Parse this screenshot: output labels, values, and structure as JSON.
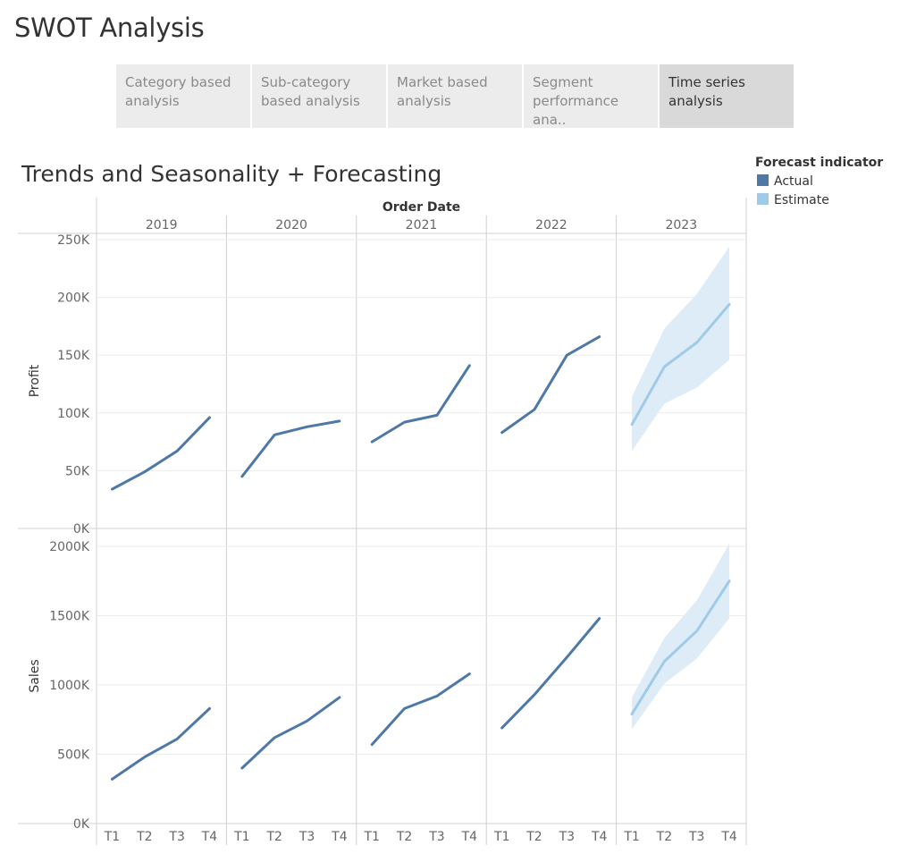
{
  "page": {
    "title": "SWOT Analysis",
    "tabs": [
      {
        "label": "Category based analysis",
        "active": false
      },
      {
        "label": "Sub-category based analysis",
        "active": false
      },
      {
        "label": "Market based analysis",
        "active": false
      },
      {
        "label": "Segment performance ana..",
        "active": false
      },
      {
        "label": "Time series analysis",
        "active": true
      }
    ]
  },
  "chart_data": {
    "type": "line",
    "title": "Trends and Seasonality + Forecasting",
    "column_header": "Order Date",
    "years": [
      "2019",
      "2020",
      "2021",
      "2022",
      "2023"
    ],
    "quarters": [
      "T1",
      "T2",
      "T3",
      "T4"
    ],
    "legend": {
      "title": "Forecast indicator",
      "placement": "top-right",
      "items": [
        {
          "label": "Actual",
          "color": "#4e79a7"
        },
        {
          "label": "Estimate",
          "color": "#a0cbe8"
        }
      ]
    },
    "colors": {
      "actual": "#4e79a7",
      "estimate": "#a0cbe8",
      "band": "#deecf8",
      "grid": "#ebebeb",
      "divider": "#d0d0d0"
    },
    "panels": [
      {
        "measure": "Profit",
        "ylim": [
          0,
          250000
        ],
        "ticks": [
          0,
          50000,
          100000,
          150000,
          200000,
          250000
        ],
        "tick_labels": [
          "0K",
          "50K",
          "100K",
          "150K",
          "200K",
          "250K"
        ],
        "actual": {
          "2019": [
            34000,
            49000,
            67000,
            96000
          ],
          "2020": [
            45000,
            81000,
            88000,
            93000
          ],
          "2021": [
            75000,
            92000,
            98000,
            141000
          ],
          "2022": [
            83000,
            103000,
            150000,
            166000
          ]
        },
        "estimate": {
          "2023": [
            90000,
            140000,
            161000,
            194000
          ]
        },
        "estimate_lower": [
          67000,
          108000,
          122000,
          146000
        ],
        "estimate_upper": [
          114000,
          173000,
          203000,
          244000
        ]
      },
      {
        "measure": "Sales",
        "ylim": [
          0,
          2000000
        ],
        "ticks": [
          0,
          500000,
          1000000,
          1500000,
          2000000
        ],
        "tick_labels": [
          "0K",
          "500K",
          "1000K",
          "1500K",
          "2000K"
        ],
        "actual": {
          "2019": [
            320000,
            480000,
            610000,
            830000
          ],
          "2020": [
            400000,
            620000,
            740000,
            910000
          ],
          "2021": [
            570000,
            830000,
            920000,
            1080000
          ],
          "2022": [
            690000,
            930000,
            1200000,
            1480000
          ]
        },
        "estimate": {
          "2023": [
            790000,
            1170000,
            1390000,
            1750000
          ]
        },
        "estimate_lower": [
          680000,
          1010000,
          1190000,
          1480000
        ],
        "estimate_upper": [
          910000,
          1340000,
          1610000,
          2020000
        ]
      }
    ]
  }
}
